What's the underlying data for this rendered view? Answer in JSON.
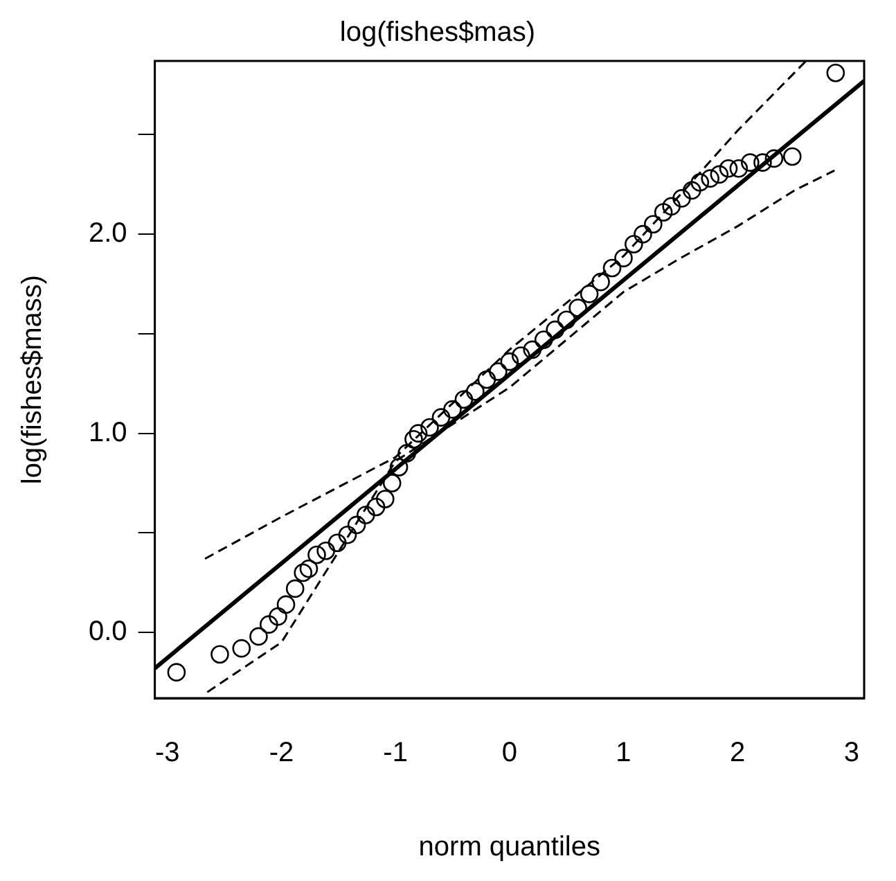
{
  "chart_data": {
    "type": "scatter",
    "title": "log(fishes$mas)",
    "xlabel": "norm quantiles",
    "ylabel": "log(fishes$mass)",
    "xlim": [
      -3.11,
      3.11
    ],
    "ylim": [
      -0.33,
      2.87
    ],
    "xticks": [
      -3,
      -2,
      -1,
      0,
      1,
      2,
      3
    ],
    "yticks": [
      {
        "value": 0,
        "label": "0.0"
      },
      {
        "value": 0.5,
        "label": null
      },
      {
        "value": 1,
        "label": "1.0"
      },
      {
        "value": 1.5,
        "label": null
      },
      {
        "value": 2,
        "label": "2.0"
      },
      {
        "value": 2.5,
        "label": null
      }
    ],
    "grid": false,
    "legend": false,
    "marker": "circle",
    "series": [
      {
        "color": "#000000",
        "x": [
          -2.92,
          -2.54,
          -2.35,
          -2.2,
          -2.11,
          -2.03,
          -1.96,
          -1.88,
          -1.81,
          -1.76,
          -1.69,
          -1.61,
          -1.51,
          -1.42,
          -1.34,
          -1.26,
          -1.17,
          -1.09,
          -1.03,
          -0.97,
          -0.9,
          -0.84,
          -0.8,
          -0.7,
          -0.6,
          -0.5,
          -0.4,
          -0.3,
          -0.2,
          -0.1,
          0,
          0.1,
          0.2,
          0.3,
          0.4,
          0.5,
          0.6,
          0.7,
          0.8,
          0.9,
          1.0,
          1.09,
          1.17,
          1.26,
          1.35,
          1.42,
          1.51,
          1.6,
          1.67,
          1.76,
          1.84,
          1.92,
          2.01,
          2.11,
          2.22,
          2.32,
          2.48,
          2.86
        ],
        "values": [
          -0.2,
          -0.11,
          -0.08,
          -0.02,
          0.04,
          0.08,
          0.14,
          0.22,
          0.3,
          0.32,
          0.39,
          0.41,
          0.45,
          0.49,
          0.54,
          0.59,
          0.63,
          0.67,
          0.75,
          0.83,
          0.9,
          0.97,
          1.0,
          1.03,
          1.08,
          1.12,
          1.17,
          1.21,
          1.27,
          1.31,
          1.36,
          1.39,
          1.42,
          1.47,
          1.52,
          1.57,
          1.63,
          1.7,
          1.76,
          1.83,
          1.88,
          1.95,
          2.0,
          2.05,
          2.11,
          2.14,
          2.18,
          2.22,
          2.26,
          2.28,
          2.3,
          2.33,
          2.33,
          2.36,
          2.36,
          2.38,
          2.39,
          2.81
        ]
      },
      {
        "type": "line",
        "color": "#000000",
        "marker": "none",
        "line_style": "solid",
        "x": [
          -3.11,
          3.11
        ],
        "values": [
          -0.18,
          2.77
        ]
      },
      {
        "type": "line",
        "color": "#000000",
        "marker": "none",
        "line_style": "dashed",
        "x": [
          -2.67,
          -2,
          -1.5,
          -1,
          0,
          1,
          1.5,
          2,
          2.6
        ],
        "values": [
          0.37,
          0.58,
          0.73,
          0.88,
          1.42,
          1.89,
          2.2,
          2.52,
          2.87
        ]
      },
      {
        "type": "line",
        "color": "#000000",
        "marker": "none",
        "line_style": "dashed",
        "x": [
          -2.65,
          -2,
          -1,
          0,
          1,
          1.5,
          2,
          2.5,
          2.85
        ],
        "values": [
          -0.3,
          -0.05,
          0.86,
          1.23,
          1.71,
          1.88,
          2.04,
          2.22,
          2.32
        ]
      }
    ]
  }
}
